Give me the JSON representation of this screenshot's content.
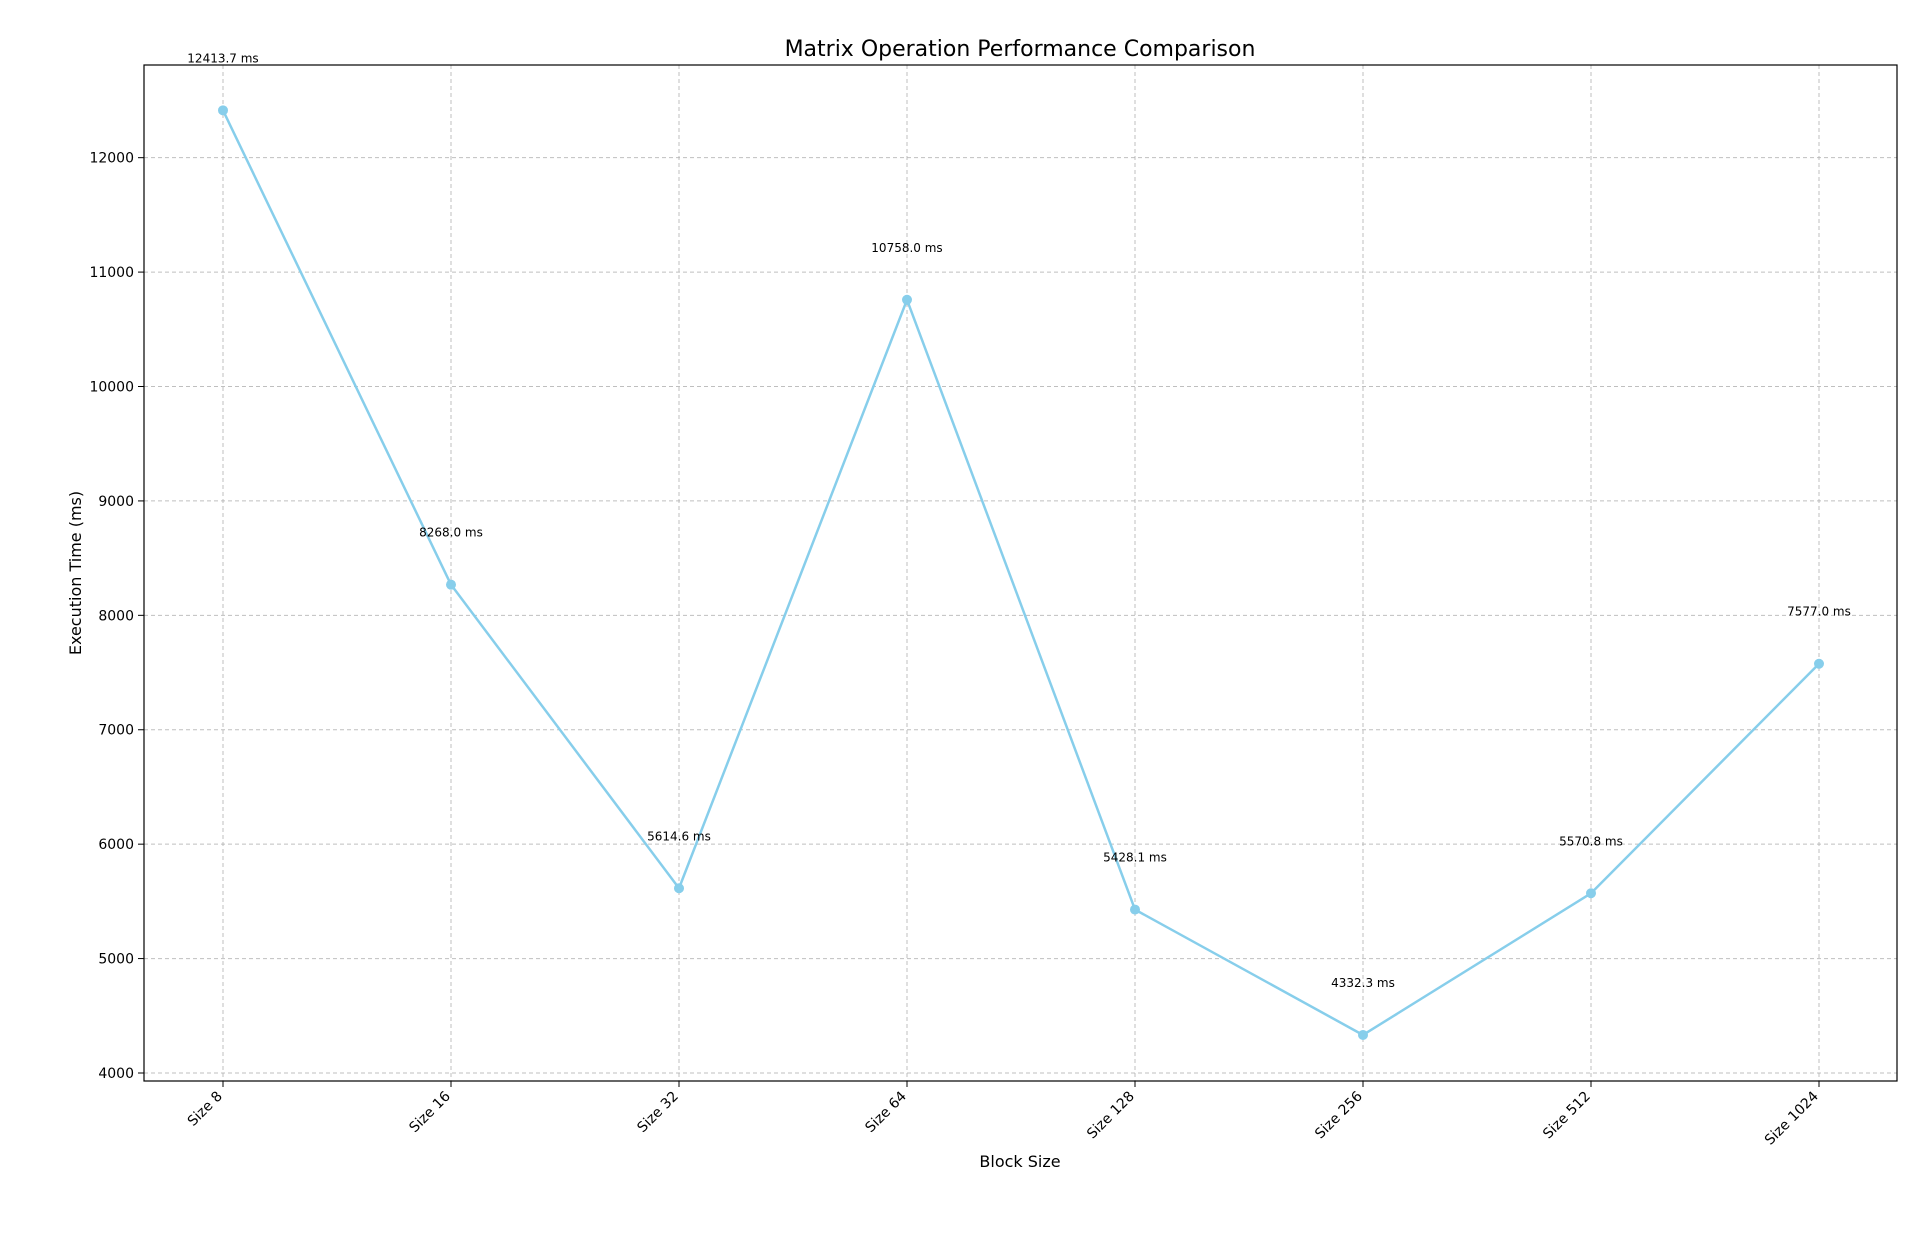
{
  "chart_data": {
    "type": "line",
    "title": "Matrix Operation Performance Comparison",
    "xlabel": "Block Size",
    "ylabel": "Execution Time (ms)",
    "categories": [
      "Size 8",
      "Size 16",
      "Size 32",
      "Size 64",
      "Size 128",
      "Size 256",
      "Size 512",
      "Size 1024"
    ],
    "series": [
      {
        "values": [
          12413.7,
          8268.0,
          5614.6,
          10758.0,
          5428.1,
          4332.3,
          5570.8,
          7577.0
        ],
        "color": "#87ceeb"
      }
    ],
    "data_labels": [
      "12413.7 ms",
      "8268.0 ms",
      "5614.6 ms",
      "10758.0 ms",
      "5428.1 ms",
      "4332.3 ms",
      "5570.8 ms",
      "7577.0 ms"
    ],
    "y_ticks": [
      4000,
      5000,
      6000,
      7000,
      8000,
      9000,
      10000,
      11000,
      12000
    ],
    "ylim": [
      3930,
      12810
    ],
    "grid": true,
    "grid_style": "dashed",
    "legend": "none"
  }
}
